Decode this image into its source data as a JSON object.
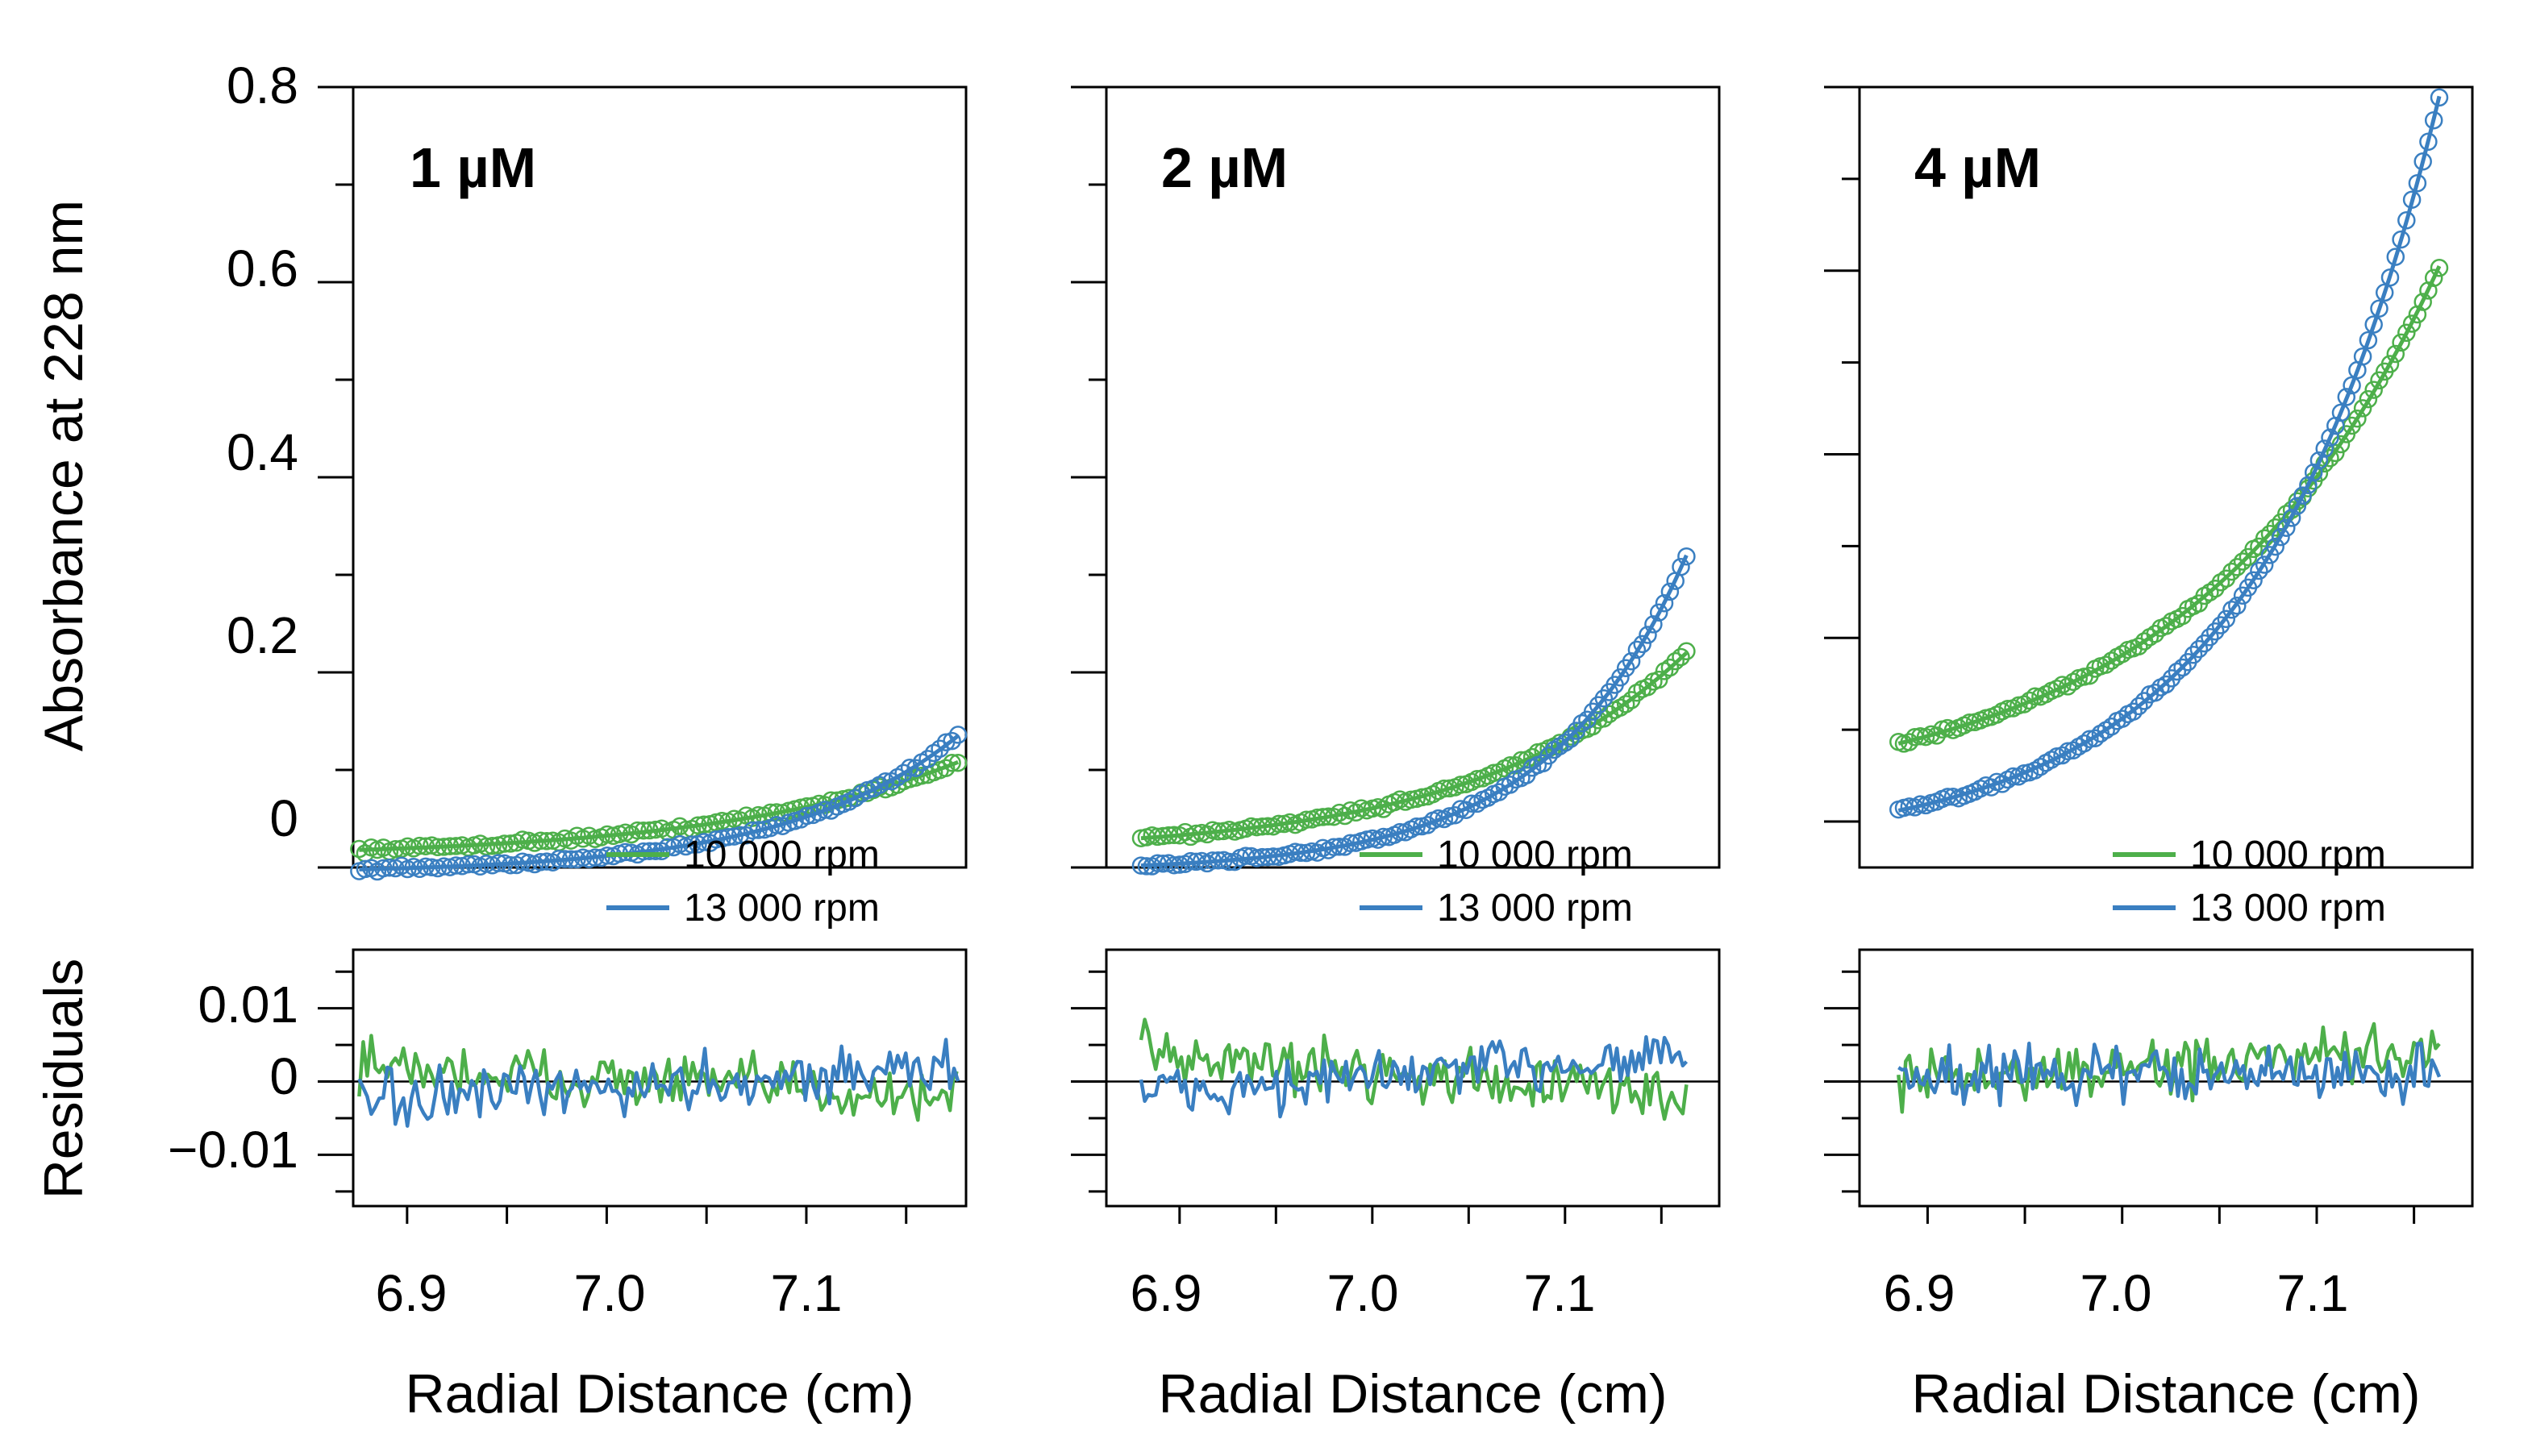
{
  "chart_data": [
    {
      "type": "scatter",
      "panel_title": "1 µM",
      "xlabel": "Radial Distance (cm)",
      "ylabel": "Absorbance at 228 nm",
      "residual_ylabel": "Residuals",
      "xlim": [
        6.873,
        7.18
      ],
      "ylim": [
        0,
        0.8
      ],
      "residual_ylim": [
        -0.017,
        0.018
      ],
      "x_ticks": [
        "6.9",
        "7.0",
        "7.1"
      ],
      "y_ticks": [
        "0",
        "0.2",
        "0.4",
        "0.6",
        "0.8"
      ],
      "residual_ticks": [
        "0.01",
        "0",
        "−0.01"
      ],
      "legend_position": "bottom-right",
      "series": [
        {
          "name": "10 000 rpm",
          "color": "#4daf4a",
          "x_start": 6.876,
          "x_end": 7.176,
          "y_start": 0.018,
          "y_end": 0.108,
          "curvature": 2.5,
          "points": 100,
          "residual_bias": 0.002,
          "residual_trend": -0.004
        },
        {
          "name": "13 000 rpm",
          "color": "#3a7fc1",
          "x_start": 6.876,
          "x_end": 7.176,
          "y_start": -0.002,
          "y_end": 0.135,
          "curvature": 3.5,
          "points": 100,
          "residual_bias": -0.003,
          "residual_trend": 0.005
        }
      ]
    },
    {
      "type": "scatter",
      "panel_title": "2 µM",
      "xlabel": "Radial Distance (cm)",
      "xlim": [
        6.862,
        7.18
      ],
      "ylim": [
        0,
        0.8
      ],
      "residual_ylim": [
        -0.017,
        0.018
      ],
      "x_ticks": [
        "6.9",
        "7.0",
        "7.1"
      ],
      "legend_position": "bottom-right",
      "series": [
        {
          "name": "10 000 rpm",
          "color": "#4daf4a",
          "x_start": 6.88,
          "x_end": 7.163,
          "y_start": 0.03,
          "y_end": 0.22,
          "curvature": 2.6,
          "points": 100,
          "residual_bias": 0.004,
          "residual_trend": -0.006
        },
        {
          "name": "13 000 rpm",
          "color": "#3a7fc1",
          "x_start": 6.88,
          "x_end": 7.163,
          "y_start": 0.002,
          "y_end": 0.32,
          "curvature": 4.0,
          "points": 100,
          "residual_bias": -0.002,
          "residual_trend": 0.006
        }
      ]
    },
    {
      "type": "scatter",
      "panel_title": "4 µM",
      "xlabel": "Radial Distance (cm)",
      "xlim": [
        6.865,
        7.18
      ],
      "ylim": [
        -0.05,
        0.8
      ],
      "residual_ylim": [
        -0.017,
        0.018
      ],
      "x_ticks": [
        "6.9",
        "7.0",
        "7.1"
      ],
      "legend_position": "bottom-right",
      "series": [
        {
          "name": "10 000 rpm",
          "color": "#4daf4a",
          "x_start": 6.885,
          "x_end": 7.163,
          "y_start": 0.085,
          "y_end": 0.605,
          "curvature": 2.2,
          "points": 100,
          "residual_bias": 0.0,
          "residual_trend": 0.004
        },
        {
          "name": "13 000 rpm",
          "color": "#3a7fc1",
          "x_start": 6.885,
          "x_end": 7.163,
          "y_start": 0.012,
          "y_end": 0.79,
          "curvature": 3.0,
          "points": 100,
          "residual_bias": 0.001,
          "residual_trend": 0.0
        }
      ]
    }
  ]
}
